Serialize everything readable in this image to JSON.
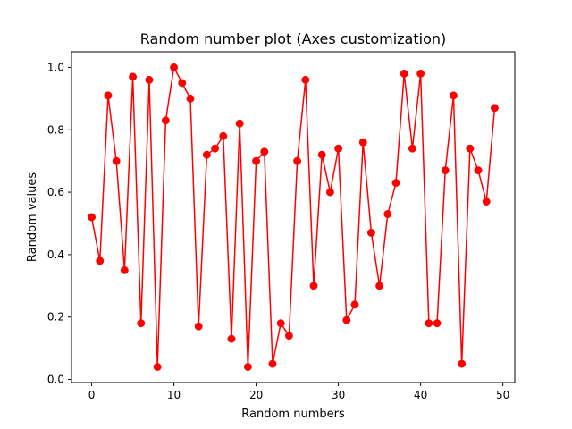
{
  "chart_data": {
    "type": "line",
    "title": "Random number plot (Axes customization)",
    "xlabel": "Random numbers",
    "ylabel": "Random values",
    "xlim": [
      -2.45,
      51.45
    ],
    "ylim": [
      -0.01,
      1.05
    ],
    "xticks": [
      0,
      10,
      20,
      30,
      40,
      50
    ],
    "xtick_labels": [
      "0",
      "10",
      "20",
      "30",
      "40",
      "50"
    ],
    "yticks": [
      0.0,
      0.2,
      0.4,
      0.6,
      0.8,
      1.0
    ],
    "ytick_labels": [
      "0.0",
      "0.2",
      "0.4",
      "0.6",
      "0.8",
      "1.0"
    ],
    "grid": false,
    "color": "#ff0000",
    "marker": "circle",
    "series": [
      {
        "x": [
          0,
          1,
          2,
          3,
          4,
          5,
          6,
          7,
          8,
          9,
          10,
          11,
          12,
          13,
          14,
          15,
          16,
          17,
          18,
          19,
          20,
          21,
          22,
          23,
          24,
          25,
          26,
          27,
          28,
          29,
          30,
          31,
          32,
          33,
          34,
          35,
          36,
          37,
          38,
          39,
          40,
          41,
          42,
          43,
          44,
          45,
          46,
          47,
          48,
          49
        ],
        "values": [
          0.52,
          0.38,
          0.91,
          0.7,
          0.35,
          0.97,
          0.18,
          0.96,
          0.04,
          0.83,
          1.0,
          0.95,
          0.9,
          0.17,
          0.72,
          0.74,
          0.78,
          0.13,
          0.82,
          0.04,
          0.7,
          0.73,
          0.05,
          0.18,
          0.14,
          0.7,
          0.96,
          0.3,
          0.72,
          0.6,
          0.74,
          0.19,
          0.24,
          0.76,
          0.47,
          0.3,
          0.53,
          0.63,
          0.98,
          0.74,
          0.98,
          0.18,
          0.18,
          0.67,
          0.91,
          0.05,
          0.74,
          0.67,
          0.57,
          0.87
        ]
      }
    ]
  }
}
